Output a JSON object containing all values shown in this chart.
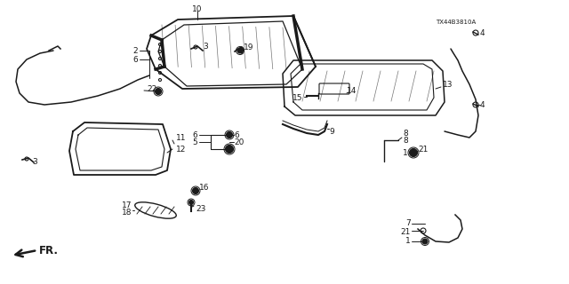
{
  "bg_color": "#ffffff",
  "line_color": "#1a1a1a",
  "font_size": 6.5
}
